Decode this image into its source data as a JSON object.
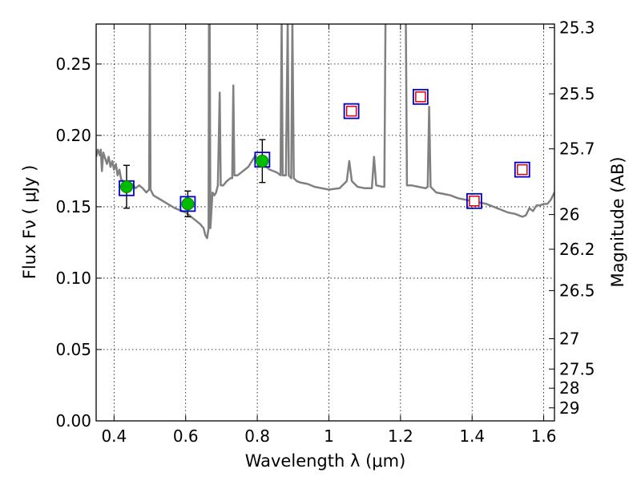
{
  "chart_data": {
    "type": "scatter",
    "title": "",
    "xlabel": "Wavelength  λ (μm)",
    "ylabel": "Flux  Fν  ( μJy )",
    "y2label": "Magnitude (AB)",
    "xlim": [
      0.35,
      1.63
    ],
    "ylim": [
      0.0,
      0.278
    ],
    "grid": true,
    "x_ticks": [
      {
        "value": 0.4,
        "label": "0.4"
      },
      {
        "value": 0.6,
        "label": "0.6"
      },
      {
        "value": 0.8,
        "label": "0.8"
      },
      {
        "value": 1.0,
        "label": "1"
      },
      {
        "value": 1.2,
        "label": "1.2"
      },
      {
        "value": 1.4,
        "label": "1.4"
      },
      {
        "value": 1.6,
        "label": "1.6"
      }
    ],
    "y_ticks": [
      {
        "value": 0.0,
        "label": "0.00"
      },
      {
        "value": 0.05,
        "label": "0.05"
      },
      {
        "value": 0.1,
        "label": "0.10"
      },
      {
        "value": 0.15,
        "label": "0.15"
      },
      {
        "value": 0.2,
        "label": "0.20"
      },
      {
        "value": 0.25,
        "label": "0.25"
      }
    ],
    "magnitude_ticks": [
      {
        "value": 25.3,
        "label": "25.3"
      },
      {
        "value": 25.5,
        "label": "25.5"
      },
      {
        "value": 25.7,
        "label": "25.7"
      },
      {
        "value": 26.0,
        "label": "26"
      },
      {
        "value": 26.2,
        "label": "26.2"
      },
      {
        "value": 26.5,
        "label": "26.5"
      },
      {
        "value": 27.0,
        "label": "27"
      },
      {
        "value": 27.5,
        "label": "27.5"
      },
      {
        "value": 28.0,
        "label": "28"
      },
      {
        "value": 29.0,
        "label": "29"
      }
    ],
    "series": [
      {
        "kind": "model_spectrum",
        "color": "#808080",
        "points": [
          [
            0.35,
            0.185
          ],
          [
            0.355,
            0.19
          ],
          [
            0.36,
            0.186
          ],
          [
            0.363,
            0.19
          ],
          [
            0.366,
            0.175
          ],
          [
            0.37,
            0.188
          ],
          [
            0.375,
            0.184
          ],
          [
            0.38,
            0.18
          ],
          [
            0.385,
            0.185
          ],
          [
            0.39,
            0.178
          ],
          [
            0.395,
            0.182
          ],
          [
            0.4,
            0.176
          ],
          [
            0.405,
            0.18
          ],
          [
            0.41,
            0.172
          ],
          [
            0.415,
            0.176
          ],
          [
            0.42,
            0.169
          ],
          [
            0.43,
            0.167
          ],
          [
            0.44,
            0.165
          ],
          [
            0.45,
            0.166
          ],
          [
            0.46,
            0.163
          ],
          [
            0.47,
            0.165
          ],
          [
            0.48,
            0.163
          ],
          [
            0.49,
            0.16
          ],
          [
            0.498,
            0.162
          ],
          [
            0.5,
            0.28
          ],
          [
            0.502,
            0.162
          ],
          [
            0.51,
            0.158
          ],
          [
            0.53,
            0.155
          ],
          [
            0.55,
            0.152
          ],
          [
            0.57,
            0.149
          ],
          [
            0.59,
            0.147
          ],
          [
            0.6,
            0.146
          ],
          [
            0.61,
            0.144
          ],
          [
            0.62,
            0.142
          ],
          [
            0.63,
            0.14
          ],
          [
            0.64,
            0.138
          ],
          [
            0.65,
            0.135
          ],
          [
            0.655,
            0.13
          ],
          [
            0.66,
            0.128
          ],
          [
            0.664,
            0.135
          ],
          [
            0.665,
            0.28
          ],
          [
            0.667,
            0.28
          ],
          [
            0.669,
            0.135
          ],
          [
            0.675,
            0.16
          ],
          [
            0.68,
            0.158
          ],
          [
            0.685,
            0.16
          ],
          [
            0.69,
            0.165
          ],
          [
            0.695,
            0.23
          ],
          [
            0.698,
            0.165
          ],
          [
            0.705,
            0.165
          ],
          [
            0.715,
            0.168
          ],
          [
            0.725,
            0.17
          ],
          [
            0.73,
            0.17
          ],
          [
            0.733,
            0.235
          ],
          [
            0.736,
            0.172
          ],
          [
            0.745,
            0.172
          ],
          [
            0.755,
            0.174
          ],
          [
            0.765,
            0.176
          ],
          [
            0.775,
            0.178
          ],
          [
            0.785,
            0.182
          ],
          [
            0.795,
            0.186
          ],
          [
            0.805,
            0.18
          ],
          [
            0.815,
            0.178
          ],
          [
            0.825,
            0.178
          ],
          [
            0.835,
            0.176
          ],
          [
            0.845,
            0.175
          ],
          [
            0.855,
            0.174
          ],
          [
            0.865,
            0.172
          ],
          [
            0.868,
            0.28
          ],
          [
            0.871,
            0.172
          ],
          [
            0.88,
            0.172
          ],
          [
            0.885,
            0.28
          ],
          [
            0.888,
            0.172
          ],
          [
            0.895,
            0.17
          ],
          [
            0.898,
            0.28
          ],
          [
            0.902,
            0.17
          ],
          [
            0.91,
            0.168
          ],
          [
            0.92,
            0.167
          ],
          [
            0.94,
            0.166
          ],
          [
            0.96,
            0.164
          ],
          [
            0.98,
            0.163
          ],
          [
            1.0,
            0.162
          ],
          [
            1.03,
            0.163
          ],
          [
            1.05,
            0.168
          ],
          [
            1.057,
            0.182
          ],
          [
            1.064,
            0.168
          ],
          [
            1.08,
            0.164
          ],
          [
            1.1,
            0.163
          ],
          [
            1.12,
            0.163
          ],
          [
            1.126,
            0.185
          ],
          [
            1.132,
            0.165
          ],
          [
            1.15,
            0.164
          ],
          [
            1.155,
            0.164
          ],
          [
            1.158,
            0.28
          ],
          [
            1.215,
            0.28
          ],
          [
            1.218,
            0.165
          ],
          [
            1.23,
            0.165
          ],
          [
            1.25,
            0.164
          ],
          [
            1.27,
            0.163
          ],
          [
            1.276,
            0.164
          ],
          [
            1.28,
            0.22
          ],
          [
            1.284,
            0.164
          ],
          [
            1.3,
            0.16
          ],
          [
            1.32,
            0.159
          ],
          [
            1.34,
            0.158
          ],
          [
            1.36,
            0.156
          ],
          [
            1.38,
            0.155
          ],
          [
            1.4,
            0.154
          ],
          [
            1.42,
            0.153
          ],
          [
            1.44,
            0.152
          ],
          [
            1.46,
            0.15
          ],
          [
            1.48,
            0.148
          ],
          [
            1.5,
            0.146
          ],
          [
            1.52,
            0.145
          ],
          [
            1.54,
            0.143
          ],
          [
            1.55,
            0.144
          ],
          [
            1.56,
            0.149
          ],
          [
            1.57,
            0.147
          ],
          [
            1.58,
            0.151
          ],
          [
            1.59,
            0.151
          ],
          [
            1.6,
            0.152
          ],
          [
            1.61,
            0.152
          ],
          [
            1.62,
            0.155
          ],
          [
            1.63,
            0.16
          ]
        ]
      },
      {
        "kind": "observed_photometry",
        "marker": "circle",
        "color": "#00bb00",
        "points": [
          {
            "x": 0.435,
            "y": 0.164,
            "err": 0.015
          },
          {
            "x": 0.606,
            "y": 0.152,
            "err": 0.009
          },
          {
            "x": 0.814,
            "y": 0.182,
            "err": 0.015
          }
        ]
      },
      {
        "kind": "model_photometry",
        "marker": "square",
        "color": "#0000cc",
        "points": [
          {
            "x": 0.435,
            "y": 0.163
          },
          {
            "x": 0.606,
            "y": 0.152
          },
          {
            "x": 0.814,
            "y": 0.183
          },
          {
            "x": 1.063,
            "y": 0.217
          },
          {
            "x": 1.256,
            "y": 0.227
          },
          {
            "x": 1.406,
            "y": 0.154
          },
          {
            "x": 1.54,
            "y": 0.176
          }
        ]
      },
      {
        "kind": "predicted_photometry",
        "marker": "square",
        "color": "#dd0000",
        "points": [
          {
            "x": 1.063,
            "y": 0.217
          },
          {
            "x": 1.256,
            "y": 0.227
          },
          {
            "x": 1.406,
            "y": 0.154
          },
          {
            "x": 1.54,
            "y": 0.176
          }
        ]
      }
    ]
  }
}
